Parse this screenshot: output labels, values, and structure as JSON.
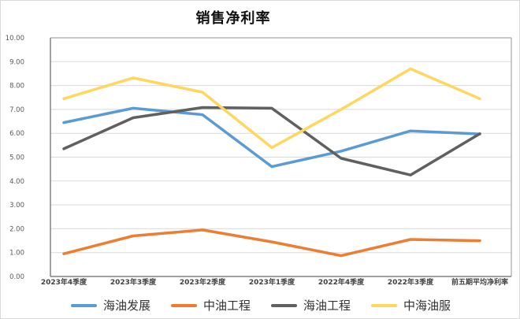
{
  "chart_data": {
    "type": "line",
    "title": "销售净利率",
    "categories": [
      "2023年4季度",
      "2023年3季度",
      "2023年2季度",
      "2023年1季度",
      "2022年4季度",
      "2022年3季度",
      "前五期平均净利率"
    ],
    "series": [
      {
        "name": "海油发展",
        "color": "#5B9BD5",
        "values": [
          6.45,
          7.05,
          6.78,
          4.6,
          5.25,
          6.1,
          5.97
        ]
      },
      {
        "name": "中油工程",
        "color": "#ED7D31",
        "values": [
          0.95,
          1.7,
          1.95,
          1.45,
          0.87,
          1.55,
          1.5
        ]
      },
      {
        "name": "海油工程",
        "color": "#606060",
        "values": [
          5.35,
          6.65,
          7.08,
          7.05,
          4.95,
          4.25,
          5.98
        ]
      },
      {
        "name": "中海油服",
        "color": "#FFD75E",
        "values": [
          7.45,
          8.32,
          7.72,
          5.4,
          7.0,
          8.7,
          7.45
        ]
      }
    ],
    "ylim": [
      0,
      10
    ],
    "y_tick_step": 1,
    "y_ticks": [
      "0.00",
      "1.00",
      "2.00",
      "3.00",
      "4.00",
      "5.00",
      "6.00",
      "7.00",
      "8.00",
      "9.00",
      "10.00"
    ],
    "grid": true,
    "legend_position": "bottom",
    "colors": {
      "gridline": "#d9d9d9",
      "plot_border": "#a6a6a6",
      "axis": "#808080",
      "tick_label": "#595959",
      "category_label": "#404040"
    }
  }
}
